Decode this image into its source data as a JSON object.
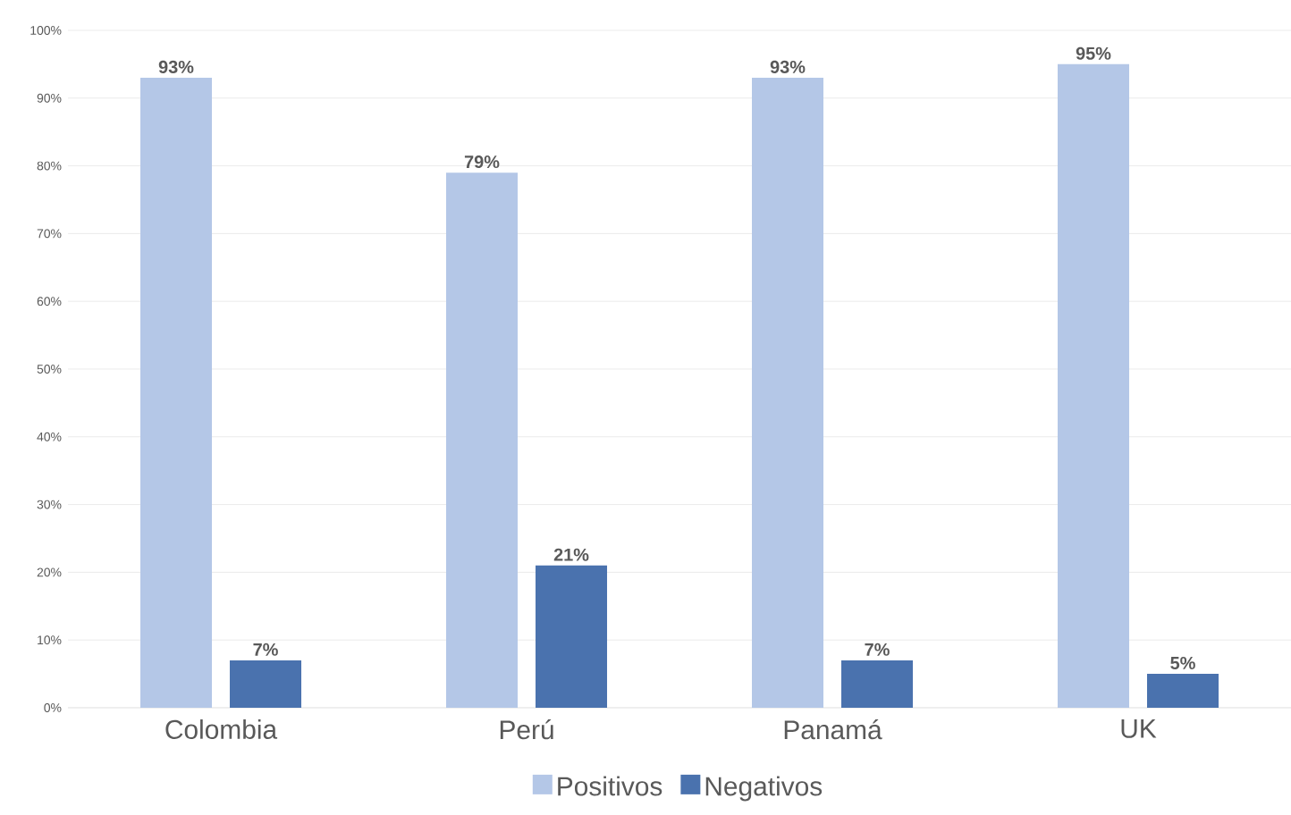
{
  "chart_data": {
    "type": "bar",
    "categories": [
      "Colombia",
      "Perú",
      "Panamá",
      "UK"
    ],
    "series": [
      {
        "name": "Positivos",
        "color": "#b4c7e7",
        "values": [
          93,
          79,
          93,
          95
        ],
        "value_labels": [
          "93%",
          "79%",
          "93%",
          "95%"
        ]
      },
      {
        "name": "Negativos",
        "color": "#4a72ae",
        "values": [
          7,
          21,
          7,
          5
        ],
        "value_labels": [
          "7%",
          "21%",
          "7%",
          "5%"
        ]
      }
    ],
    "ylim": [
      0,
      100
    ],
    "yticks": [
      {
        "value": 0,
        "label": "0%"
      },
      {
        "value": 10,
        "label": "10%"
      },
      {
        "value": 20,
        "label": "20%"
      },
      {
        "value": 30,
        "label": "30%"
      },
      {
        "value": 40,
        "label": "40%"
      },
      {
        "value": 50,
        "label": "50%"
      },
      {
        "value": 60,
        "label": "60%"
      },
      {
        "value": 70,
        "label": "70%"
      },
      {
        "value": 80,
        "label": "80%"
      },
      {
        "value": 90,
        "label": "90%"
      },
      {
        "value": 100,
        "label": "100%"
      }
    ],
    "grid": "y",
    "legend": "bottom"
  }
}
